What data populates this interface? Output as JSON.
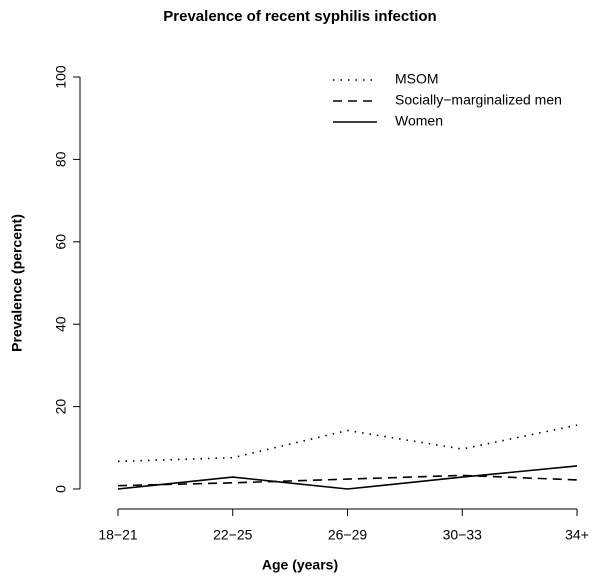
{
  "chart_data": {
    "type": "line",
    "title": "Prevalence of recent syphilis infection",
    "x_label": "Age (years)",
    "y_label": "Prevalence (percent)",
    "categories": [
      "18−21",
      "22−25",
      "26−29",
      "30−33",
      "34+"
    ],
    "series": [
      {
        "name": "MSOM",
        "color": "#000000",
        "linestyle": "dotted",
        "values": [
          6.7,
          7.6,
          14.2,
          9.7,
          15.5
        ]
      },
      {
        "name": "Socially−marginalized men",
        "color": "#000000",
        "linestyle": "dashed",
        "values": [
          0.8,
          1.5,
          2.4,
          3.3,
          2.2
        ]
      },
      {
        "name": "Women",
        "color": "#000000",
        "linestyle": "solid",
        "values": [
          0,
          2.9,
          0,
          2.9,
          5.6
        ]
      }
    ],
    "ylim": [
      0,
      100
    ],
    "yticks": [
      0,
      20,
      40,
      60,
      80,
      100
    ],
    "legend": "top-right"
  }
}
